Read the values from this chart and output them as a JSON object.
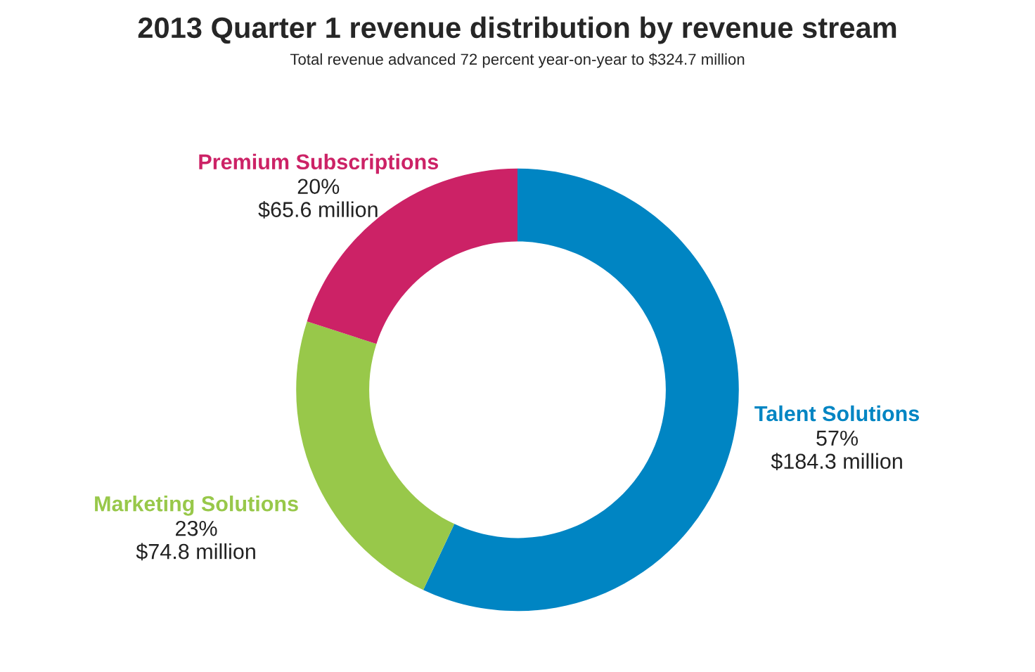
{
  "chart_data": {
    "type": "donut",
    "title": "2013 Quarter 1 revenue distribution by revenue stream",
    "subtitle": "Total revenue advanced 72 percent year-on-year to $324.7 million",
    "categories": [
      "Talent Solutions",
      "Marketing Solutions",
      "Premium Subscriptions"
    ],
    "values": [
      57,
      23,
      20
    ],
    "value_labels": [
      "57%",
      "23%",
      "20%"
    ],
    "annotations": [
      "$184.3 million",
      "$74.8 million",
      "$65.6 million"
    ],
    "colors": [
      "#0085c3",
      "#98c84a",
      "#cc2266"
    ]
  }
}
